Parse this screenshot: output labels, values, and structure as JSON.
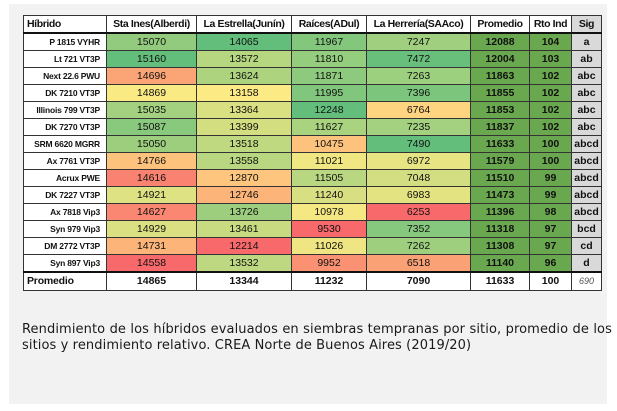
{
  "table": {
    "headers": {
      "hybrid": "Híbrido",
      "sites": [
        "Sta Ines(Alberdi)",
        "La Estrella(Junín)",
        "Raíces(ADul)",
        "La Herrería(SAAco)"
      ],
      "promedio": "Promedio",
      "rto": "Rto Ind",
      "sig": "Sig"
    },
    "rows": [
      {
        "hybrid": "P 1815 VYHR",
        "sites": [
          "15070",
          "14065",
          "11967",
          "7247"
        ],
        "promedio": "12088",
        "rto": "104",
        "sig": "a"
      },
      {
        "hybrid": "Lt 721 VT3P",
        "sites": [
          "15160",
          "13572",
          "11810",
          "7472"
        ],
        "promedio": "12004",
        "rto": "103",
        "sig": "ab"
      },
      {
        "hybrid": "Next 22.6 PWU",
        "sites": [
          "14696",
          "13624",
          "11871",
          "7263"
        ],
        "promedio": "11863",
        "rto": "102",
        "sig": "abc"
      },
      {
        "hybrid": "DK 7210 VT3P",
        "sites": [
          "14869",
          "13158",
          "11995",
          "7396"
        ],
        "promedio": "11855",
        "rto": "102",
        "sig": "abc"
      },
      {
        "hybrid": "Illinois 799 VT3P",
        "sites": [
          "15035",
          "13364",
          "12248",
          "6764"
        ],
        "promedio": "11853",
        "rto": "102",
        "sig": "abc"
      },
      {
        "hybrid": "DK 7270 VT3P",
        "sites": [
          "15087",
          "13399",
          "11627",
          "7235"
        ],
        "promedio": "11837",
        "rto": "102",
        "sig": "abc"
      },
      {
        "hybrid": "SRM 6620 MGRR",
        "sites": [
          "15050",
          "13518",
          "10475",
          "7490"
        ],
        "promedio": "11633",
        "rto": "100",
        "sig": "abcd"
      },
      {
        "hybrid": "Ax 7761 VT3P",
        "sites": [
          "14766",
          "13558",
          "11021",
          "6972"
        ],
        "promedio": "11579",
        "rto": "100",
        "sig": "abcd"
      },
      {
        "hybrid": "Acrux PWE",
        "sites": [
          "14616",
          "12870",
          "11505",
          "7048"
        ],
        "promedio": "11510",
        "rto": "99",
        "sig": "abcd"
      },
      {
        "hybrid": "DK 7227 VT3P",
        "sites": [
          "14921",
          "12746",
          "11240",
          "6983"
        ],
        "promedio": "11473",
        "rto": "99",
        "sig": "abcd"
      },
      {
        "hybrid": "Ax 7818 Vip3",
        "sites": [
          "14627",
          "13726",
          "10978",
          "6253"
        ],
        "promedio": "11396",
        "rto": "98",
        "sig": "abcd"
      },
      {
        "hybrid": "Syn 979 Vip3",
        "sites": [
          "14929",
          "13461",
          "9530",
          "7352"
        ],
        "promedio": "11318",
        "rto": "97",
        "sig": "bcd"
      },
      {
        "hybrid": "DM 2772 VT3P",
        "sites": [
          "14731",
          "12214",
          "11026",
          "7262"
        ],
        "promedio": "11308",
        "rto": "97",
        "sig": "cd"
      },
      {
        "hybrid": "Syn 897 Vip3",
        "sites": [
          "14558",
          "13532",
          "9952",
          "6518"
        ],
        "promedio": "11140",
        "rto": "96",
        "sig": "d"
      }
    ],
    "footer": {
      "label": "Promedio",
      "sites": [
        "14865",
        "13344",
        "11232",
        "7090"
      ],
      "promedio": "11633",
      "rto": "100",
      "sig": "690"
    },
    "colors": {
      "scale_high": "#63be7b",
      "scale_mid": "#ffeb84",
      "scale_low": "#f8696b",
      "promedio_fill": "#6aa84f",
      "sig_fill": "#d9d9d9"
    }
  },
  "caption": "Rendimiento de los híbridos evaluados en siembras tempranas por sitio, promedio de los sitios y rendimiento relativo. CREA Norte de Buenos Aires (2019/20)"
}
